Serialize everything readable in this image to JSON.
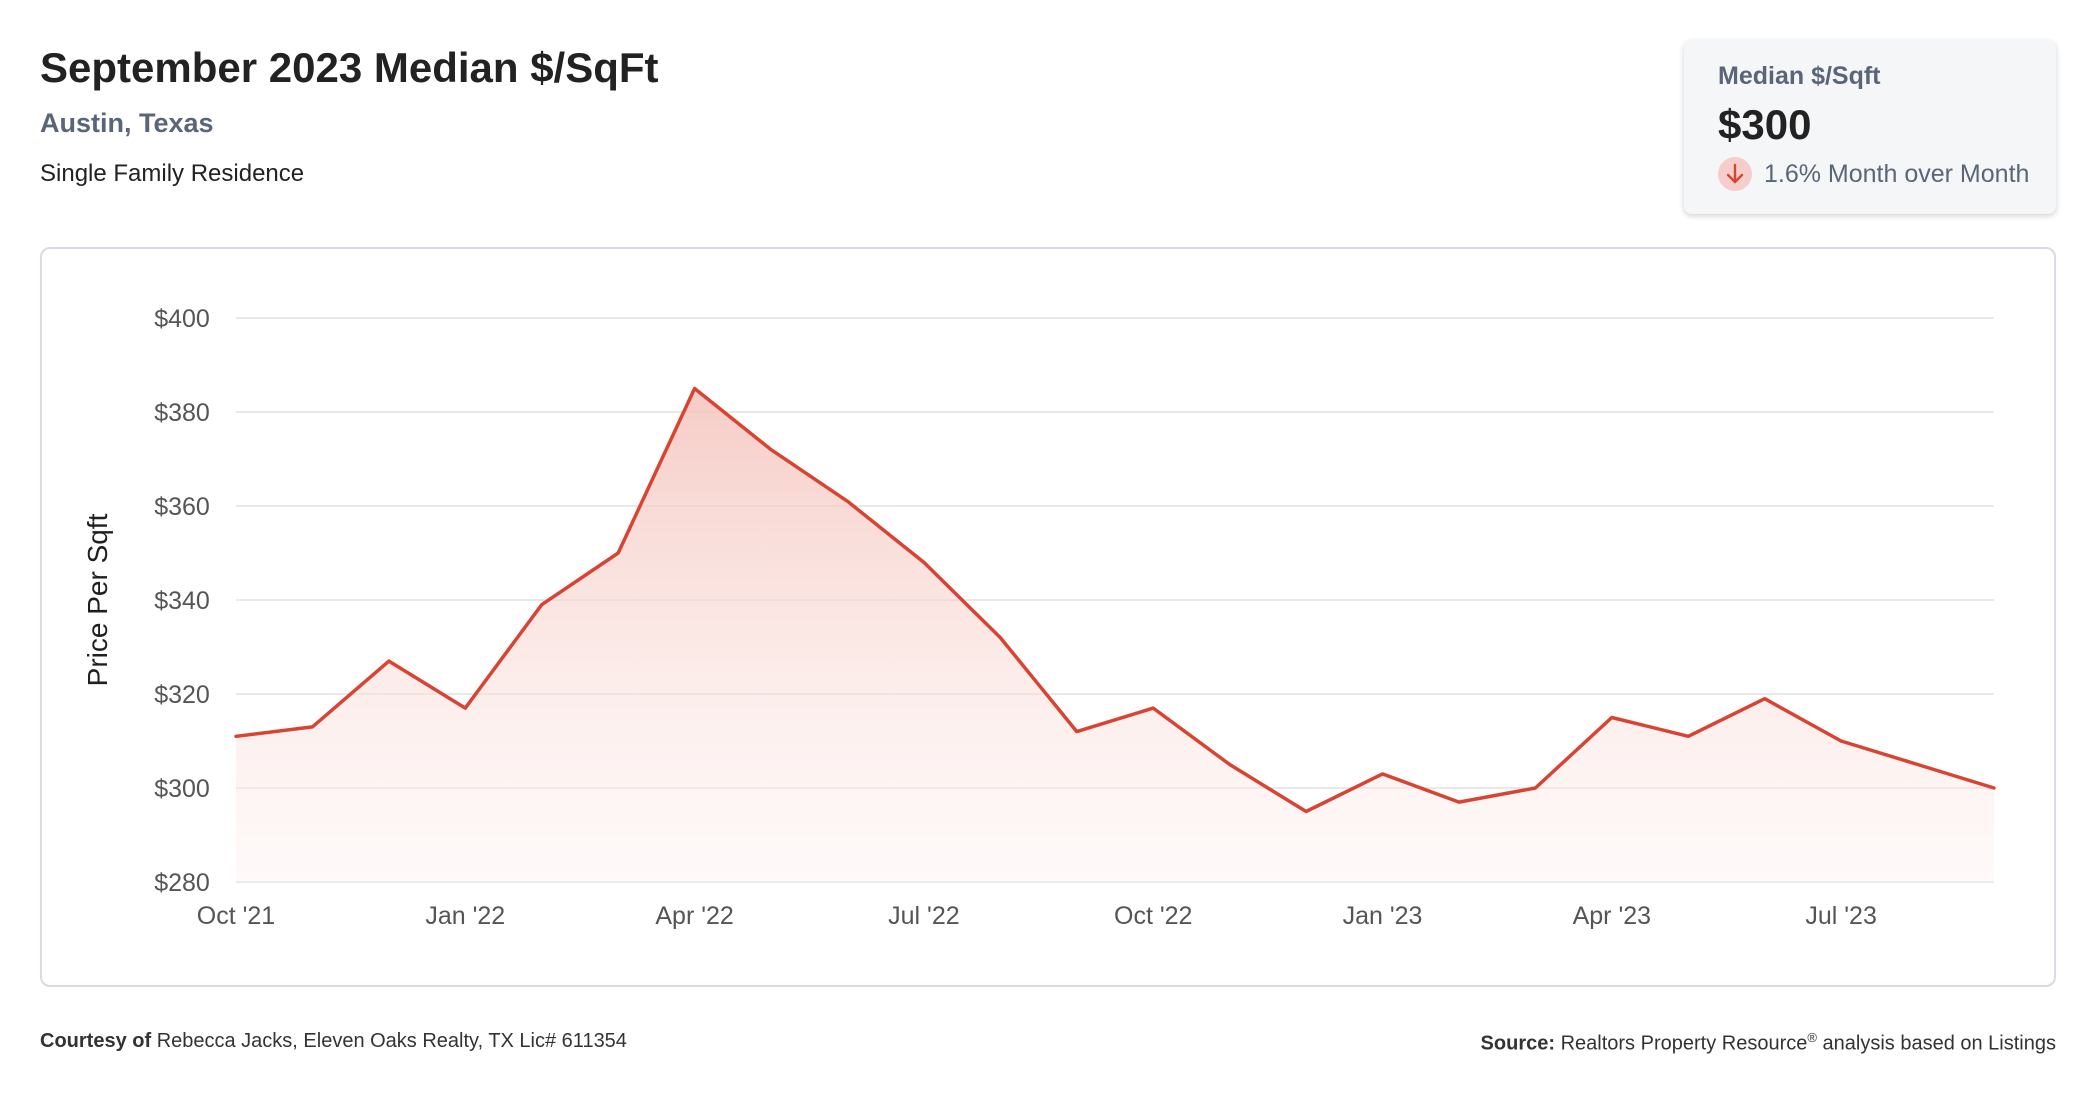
{
  "header": {
    "title": "September 2023 Median $/SqFt",
    "location": "Austin, Texas",
    "segment": "Single Family Residence"
  },
  "kpi": {
    "label": "Median $/Sqft",
    "value": "$300",
    "change_text": "1.6% Month over Month",
    "direction_icon": "arrow-down-icon"
  },
  "colors": {
    "line": "#d94432",
    "fill_top": "#f4c2bb",
    "grid": "#e2e2e2",
    "kpi_arrow": "#d94432"
  },
  "chart_data": {
    "type": "area",
    "title": "",
    "xlabel": "",
    "ylabel": "Price Per Sqft",
    "x": [
      "2021-10",
      "2021-11",
      "2021-12",
      "2022-01",
      "2022-02",
      "2022-03",
      "2022-04",
      "2022-05",
      "2022-06",
      "2022-07",
      "2022-08",
      "2022-09",
      "2022-10",
      "2022-11",
      "2022-12",
      "2023-01",
      "2023-02",
      "2023-03",
      "2023-04",
      "2023-05",
      "2023-06",
      "2023-07",
      "2023-08",
      "2023-09"
    ],
    "series": [
      {
        "values": [
          311,
          313,
          327,
          317,
          339,
          350,
          385,
          372,
          361,
          348,
          332,
          312,
          317,
          305,
          295,
          303,
          297,
          300,
          315,
          311,
          319,
          310,
          305,
          300
        ]
      }
    ],
    "ylim": [
      280,
      400
    ],
    "yticks": [
      280,
      300,
      320,
      340,
      360,
      380,
      400
    ],
    "ytick_labels": [
      "$280",
      "$300",
      "$320",
      "$340",
      "$360",
      "$380",
      "$400"
    ],
    "xtick_labels": [
      {
        "x": "2021-10",
        "label": "Oct '21"
      },
      {
        "x": "2022-01",
        "label": "Jan '22"
      },
      {
        "x": "2022-04",
        "label": "Apr '22"
      },
      {
        "x": "2022-07",
        "label": "Jul '22"
      },
      {
        "x": "2022-10",
        "label": "Oct '22"
      },
      {
        "x": "2023-01",
        "label": "Jan '23"
      },
      {
        "x": "2023-04",
        "label": "Apr '23"
      },
      {
        "x": "2023-07",
        "label": "Jul '23"
      }
    ],
    "grid": true,
    "legend": "none"
  },
  "footer": {
    "courtesy_label": "Courtesy of",
    "courtesy_text": "Rebecca Jacks, Eleven Oaks Realty, TX Lic# 611354",
    "source_label": "Source:",
    "source_text_a": "Realtors Property Resource",
    "source_sup": "®",
    "source_text_b": "analysis based on Listings"
  }
}
